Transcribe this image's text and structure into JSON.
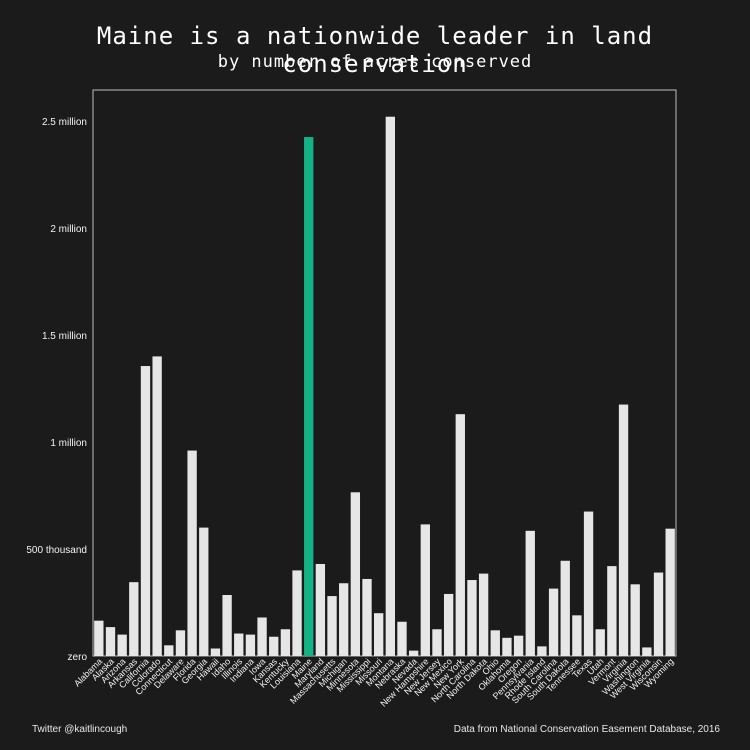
{
  "title": "Maine is a nationwide leader in land conservation",
  "subtitle": "by number of acres conserved",
  "footer": {
    "credit": "Twitter @kaitlincough",
    "source": "Data from National Conservation Easement Database, 2016"
  },
  "colors": {
    "background": "#1b1b1b",
    "bar": "#e6e6e6",
    "highlight": "#14b386",
    "axis": "#bdbdbd",
    "text": "#f2f2f2"
  },
  "chart_data": {
    "type": "bar",
    "highlight": "Maine",
    "ylim": [
      0,
      2650000
    ],
    "yticks": [
      {
        "value": 0,
        "label": "zero"
      },
      {
        "value": 500000,
        "label": "500 thousand"
      },
      {
        "value": 1000000,
        "label": "1 million"
      },
      {
        "value": 1500000,
        "label": "1.5 million"
      },
      {
        "value": 2000000,
        "label": "2 million"
      },
      {
        "value": 2500000,
        "label": "2.5 million"
      }
    ],
    "categories": [
      "Alabama",
      "Alaska",
      "Arizona",
      "Arkansas",
      "California",
      "Colorado",
      "Connecticut",
      "Delaware",
      "Florida",
      "Georgia",
      "Hawaii",
      "Idaho",
      "Illinois",
      "Indiana",
      "Iowa",
      "Kansas",
      "Kentucky",
      "Louisiana",
      "Maine",
      "Maryland",
      "Massachusetts",
      "Michigan",
      "Minnesota",
      "Mississippi",
      "Missouri",
      "Montana",
      "Nebraska",
      "Nevada",
      "New Hampshire",
      "New Jersey",
      "New Mexico",
      "New York",
      "North Carolina",
      "North Dakota",
      "Ohio",
      "Oklahoma",
      "Oregon",
      "Pennsylvania",
      "Rhode Island",
      "South Carolina",
      "South Dakota",
      "Tennessee",
      "Texas",
      "Utah",
      "Vermont",
      "Virginia",
      "Washington",
      "West Virginia",
      "Wisconsin",
      "Wyoming"
    ],
    "values": [
      165000,
      135000,
      100000,
      345000,
      1355000,
      1400000,
      50000,
      120000,
      960000,
      600000,
      35000,
      285000,
      105000,
      100000,
      180000,
      90000,
      125000,
      400000,
      2425000,
      430000,
      280000,
      340000,
      765000,
      360000,
      200000,
      2520000,
      160000,
      25000,
      615000,
      125000,
      290000,
      1130000,
      355000,
      385000,
      120000,
      85000,
      95000,
      585000,
      45000,
      315000,
      445000,
      190000,
      675000,
      125000,
      420000,
      1175000,
      335000,
      40000,
      390000,
      595000
    ]
  }
}
